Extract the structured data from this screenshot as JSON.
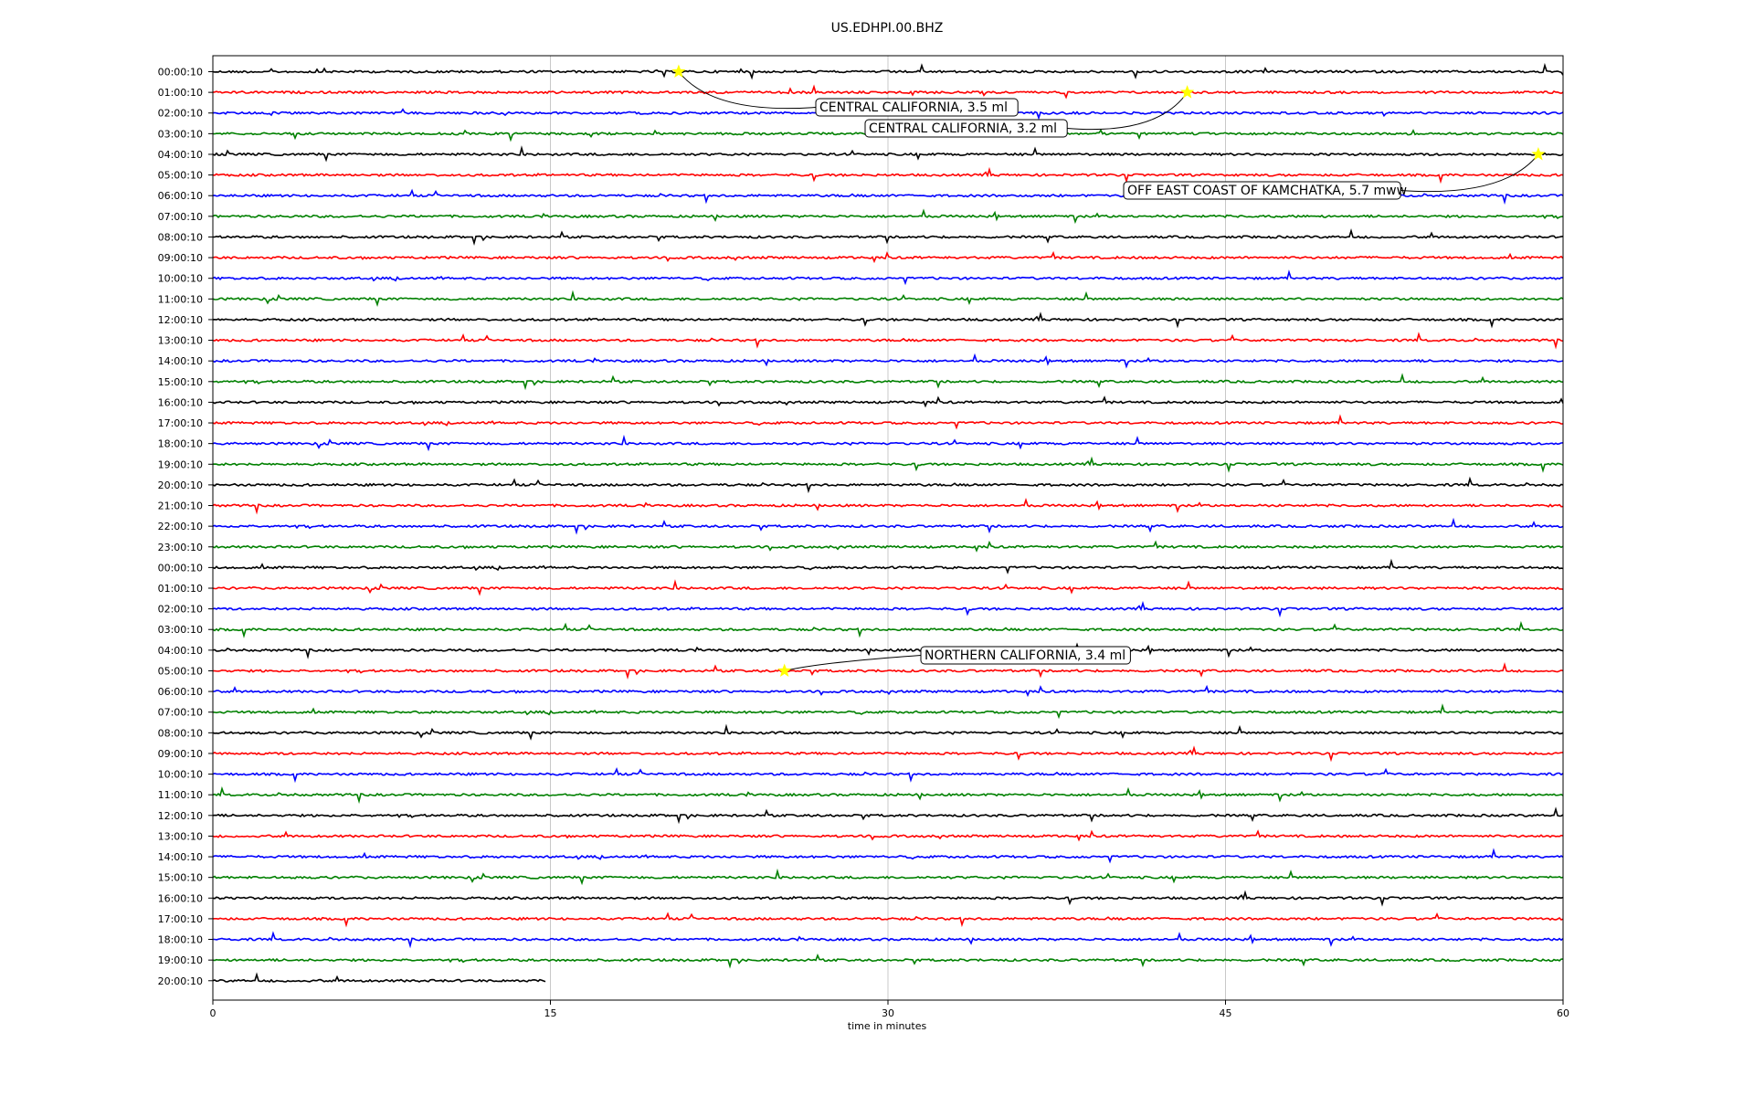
{
  "chart_data": {
    "type": "line",
    "title": "US.EDHPI.00.BHZ",
    "xlabel": "time in minutes",
    "ylabel": "",
    "xlim": [
      0,
      60
    ],
    "x_ticks": [
      0,
      15,
      30,
      45,
      60
    ],
    "vertical_grid": [
      15,
      30,
      45
    ],
    "color_cycle": [
      "#000000",
      "#ff0000",
      "#0000ff",
      "#008000"
    ],
    "rows": [
      "00:00:10",
      "01:00:10",
      "02:00:10",
      "03:00:10",
      "04:00:10",
      "05:00:10",
      "06:00:10",
      "07:00:10",
      "08:00:10",
      "09:00:10",
      "10:00:10",
      "11:00:10",
      "12:00:10",
      "13:00:10",
      "14:00:10",
      "15:00:10",
      "16:00:10",
      "17:00:10",
      "18:00:10",
      "19:00:10",
      "20:00:10",
      "21:00:10",
      "22:00:10",
      "23:00:10",
      "00:00:10",
      "01:00:10",
      "02:00:10",
      "03:00:10",
      "04:00:10",
      "05:00:10",
      "06:00:10",
      "07:00:10",
      "08:00:10",
      "09:00:10",
      "10:00:10",
      "11:00:10",
      "12:00:10",
      "13:00:10",
      "14:00:10",
      "15:00:10",
      "16:00:10",
      "17:00:10",
      "18:00:10",
      "19:00:10",
      "20:00:10"
    ],
    "last_trace_end_minute": 14.8,
    "events": [
      {
        "label": "CENTRAL CALIFORNIA, 3.5 ml",
        "row": 0,
        "minute": 20.7
      },
      {
        "label": "CENTRAL CALIFORNIA, 3.2 ml",
        "row": 1,
        "minute": 43.3
      },
      {
        "label": "OFF EAST COAST OF KAMCHATKA, 5.7 mww",
        "row": 4,
        "minute": 58.9
      },
      {
        "label": "NORTHERN CALIFORNIA, 3.4 ml",
        "row": 29,
        "minute": 25.4
      }
    ],
    "marker_color": "#ffff00"
  }
}
